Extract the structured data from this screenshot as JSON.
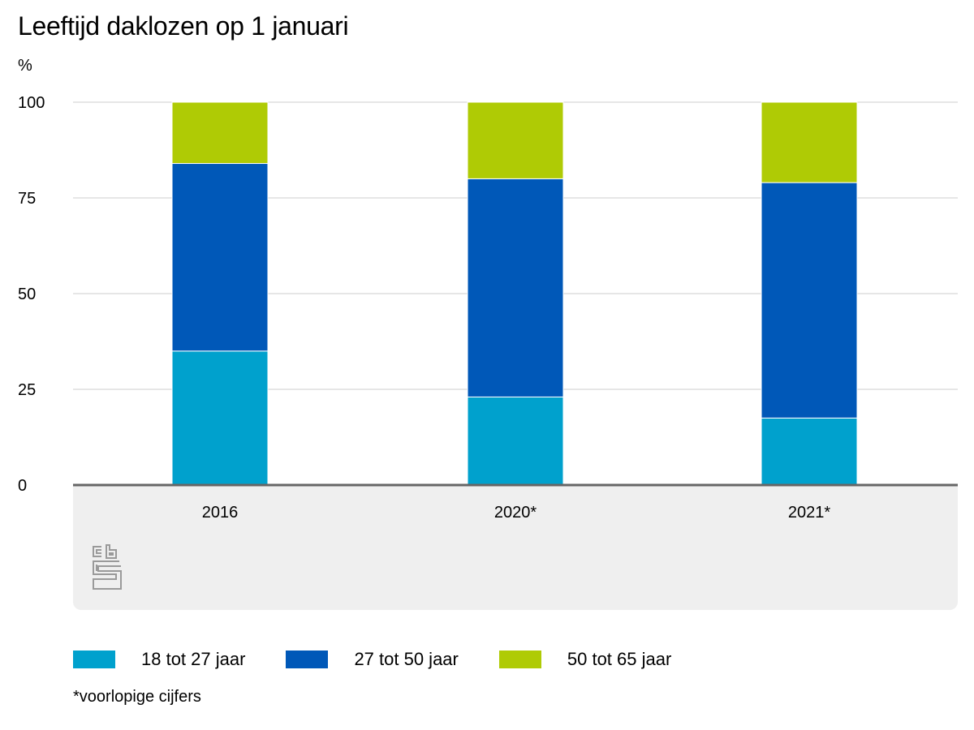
{
  "chart_data": {
    "type": "bar",
    "stacked": true,
    "title": "Leeftijd daklozen op 1 januari",
    "ylabel": "%",
    "xlabel": "",
    "ylim": [
      0,
      100
    ],
    "yticks": [
      0,
      25,
      50,
      75,
      100
    ],
    "categories": [
      "2016",
      "2020*",
      "2021*"
    ],
    "series": [
      {
        "name": "18 tot 27 jaar",
        "color": "#00a1cd",
        "values": [
          35,
          23,
          17.5
        ]
      },
      {
        "name": "27 tot 50 jaar",
        "color": "#0058b8",
        "values": [
          49,
          57,
          61.5
        ]
      },
      {
        "name": "50 tot 65 jaar",
        "color": "#afcb05",
        "values": [
          16,
          20,
          21
        ]
      }
    ],
    "grid": true,
    "legend_position": "bottom-left",
    "footnote": "*voorlopige cijfers"
  },
  "logo": {
    "name": "cbs-logo-icon"
  }
}
